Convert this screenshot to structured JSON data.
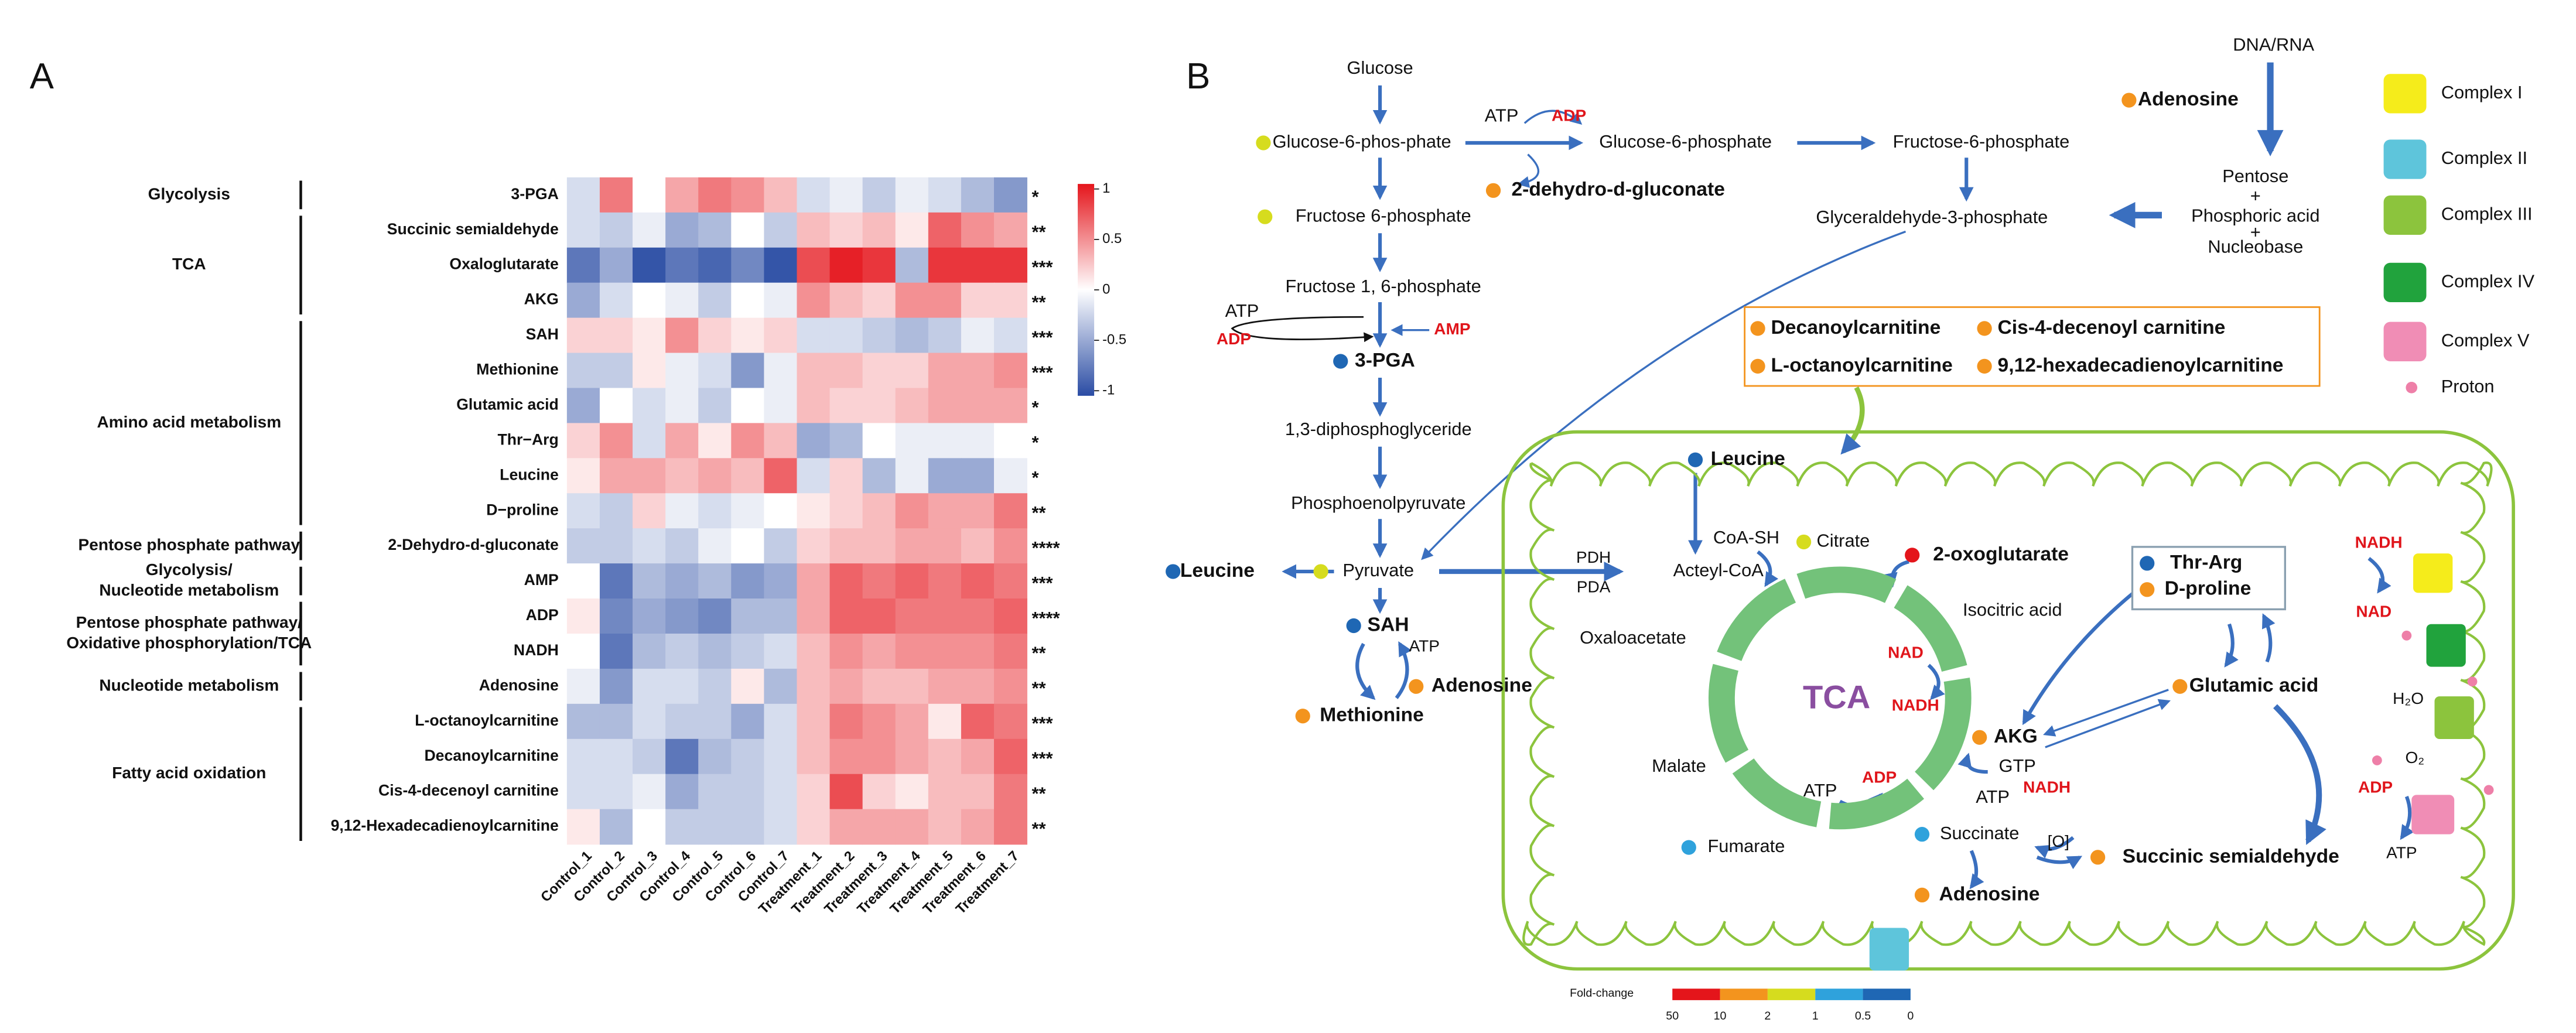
{
  "panel_labels": [
    "A",
    "B"
  ],
  "chart_data": {
    "type": "heatmap",
    "rows": [
      "3-PGA",
      "Succinic semialdehyde",
      "Oxaloglutarate",
      "AKG",
      "SAH",
      "Methionine",
      "Glutamic acid",
      "Thr−Arg",
      "Leucine",
      "D−proline",
      "2-Dehydro-d-gluconate",
      "AMP",
      "ADP",
      "NADH",
      "Adenosine",
      "L-octanoylcarnitine",
      "Decanoylcarnitine",
      "Cis-4-decenoyl carnitine",
      "9,12-Hexadecadienoylcarnitine"
    ],
    "columns": [
      "Control_1",
      "Control_2",
      "Control_3",
      "Control_4",
      "Control_5",
      "Control_6",
      "Control_7",
      "Treatment_1",
      "Treatment_2",
      "Treatment_3",
      "Treatment_4",
      "Treatment_5",
      "Treatment_6",
      "Treatment_7"
    ],
    "groups": [
      [
        "Glycolysis"
      ],
      [
        "TCA"
      ],
      [
        "Amino acid metabolism"
      ],
      [
        "Pentose phosphate pathway"
      ],
      [
        "Glycolysis/",
        "Nucleotide metabolism"
      ],
      [
        "Pentose phosphate pathway/",
        "Oxidative phosphorylation/TCA"
      ],
      [
        "Nucleotide metabolism"
      ],
      [
        "Fatty acid oxidation"
      ]
    ],
    "significance": [
      "*",
      "**",
      "***",
      "**",
      "***",
      "***",
      "*",
      "*",
      "*",
      "**",
      "****",
      "***",
      "****",
      "**",
      "**",
      "***",
      "***",
      "**",
      "**"
    ],
    "values": [
      [
        -0.2,
        0.6,
        0,
        0.4,
        0.6,
        0.5,
        0.3,
        -0.2,
        -0.1,
        -0.3,
        -0.1,
        -0.2,
        -0.4,
        -0.6
      ],
      [
        -0.2,
        -0.3,
        -0.1,
        -0.5,
        -0.4,
        0,
        -0.3,
        0.3,
        0.2,
        0.3,
        0.1,
        0.7,
        0.5,
        0.4
      ],
      [
        -0.8,
        -0.5,
        -1,
        -0.8,
        -0.9,
        -0.7,
        -1,
        0.8,
        1,
        0.9,
        -0.4,
        0.9,
        0.9,
        0.9
      ],
      [
        -0.5,
        -0.2,
        0,
        -0.1,
        -0.3,
        0,
        -0.1,
        0.5,
        0.3,
        0.2,
        0.5,
        0.5,
        0.2,
        0.2
      ],
      [
        0.2,
        0.2,
        0.1,
        0.5,
        0.2,
        0.1,
        0.2,
        -0.2,
        -0.2,
        -0.3,
        -0.4,
        -0.3,
        -0.1,
        -0.2
      ],
      [
        -0.3,
        -0.3,
        0.1,
        -0.1,
        -0.2,
        -0.6,
        -0.1,
        0.3,
        0.3,
        0.2,
        0.2,
        0.4,
        0.4,
        0.5
      ],
      [
        -0.5,
        0,
        -0.2,
        -0.1,
        -0.3,
        0,
        -0.1,
        0.3,
        0.2,
        0.2,
        0.3,
        0.4,
        0.4,
        0.4
      ],
      [
        0.2,
        0.5,
        -0.2,
        0.4,
        0.1,
        0.5,
        0.3,
        -0.5,
        -0.4,
        0,
        -0.1,
        -0.1,
        -0.1,
        0
      ],
      [
        0.1,
        0.4,
        0.4,
        0.3,
        0.4,
        0.3,
        0.7,
        -0.2,
        0.2,
        -0.4,
        -0.1,
        -0.5,
        -0.5,
        -0.1
      ],
      [
        -0.2,
        -0.3,
        0.2,
        -0.1,
        -0.2,
        -0.1,
        0,
        0.1,
        0.2,
        0.3,
        0.5,
        0.4,
        0.4,
        0.6
      ],
      [
        -0.3,
        -0.3,
        -0.2,
        -0.3,
        -0.1,
        0,
        -0.3,
        0.2,
        0.3,
        0.3,
        0.4,
        0.4,
        0.3,
        0.5
      ],
      [
        0,
        -0.8,
        -0.4,
        -0.5,
        -0.4,
        -0.6,
        -0.5,
        0.4,
        0.7,
        0.6,
        0.7,
        0.6,
        0.7,
        0.6
      ],
      [
        0.1,
        -0.7,
        -0.5,
        -0.6,
        -0.7,
        -0.4,
        -0.4,
        0.4,
        0.7,
        0.7,
        0.6,
        0.6,
        0.6,
        0.7
      ],
      [
        0,
        -0.8,
        -0.4,
        -0.3,
        -0.4,
        -0.3,
        -0.2,
        0.3,
        0.5,
        0.4,
        0.5,
        0.5,
        0.5,
        0.6
      ],
      [
        -0.1,
        -0.6,
        -0.2,
        -0.2,
        -0.3,
        0.1,
        -0.4,
        0.3,
        0.4,
        0.3,
        0.3,
        0.4,
        0.4,
        0.5
      ],
      [
        -0.4,
        -0.4,
        -0.2,
        -0.3,
        -0.3,
        -0.5,
        -0.2,
        0.3,
        0.6,
        0.5,
        0.4,
        0.1,
        0.7,
        0.6
      ],
      [
        -0.2,
        -0.2,
        -0.3,
        -0.8,
        -0.4,
        -0.3,
        -0.2,
        0.3,
        0.5,
        0.5,
        0.4,
        0.3,
        0.4,
        0.7
      ],
      [
        -0.2,
        -0.2,
        -0.1,
        -0.5,
        -0.3,
        -0.3,
        -0.2,
        0.2,
        0.8,
        0.2,
        0.1,
        0.3,
        0.3,
        0.6
      ],
      [
        0.1,
        -0.4,
        0,
        -0.3,
        -0.3,
        -0.3,
        -0.2,
        0.2,
        0.4,
        0.4,
        0.4,
        0.3,
        0.4,
        0.6
      ]
    ],
    "zlim": [
      -1.05,
      1.05
    ],
    "zticks": [
      1,
      0.5,
      0,
      -0.5,
      -1
    ],
    "colors": {
      "low": "#2a4ca4",
      "mid": "#ffffff",
      "high": "#e5151c"
    }
  },
  "diagram": {
    "nodes": [
      "Glucose",
      "Glucose-6-phos-phate",
      "ATP",
      "ADP",
      "Glucose-6-phosphate",
      "2-dehydro-d-gluconate",
      "Fructose-6-phosphate",
      "DNA/RNA",
      "Adenosine",
      "Pentose",
      "+",
      "Phosphoric acid",
      "+",
      "Nucleobase",
      "Glyceraldehyde-3-phosphate",
      "Fructose 6-phosphate",
      "Fructose 1, 6-phosphate",
      "ATP",
      "ADP",
      "AMP",
      "3-PGA",
      "1,3-diphosphoglyceride",
      "Phosphoenolpyruvate",
      "Leucine",
      "Pyruvate",
      "SAH",
      "ATP",
      "Adenosine",
      "Methionine",
      "Leucine",
      "PDH",
      "PDA",
      "Acteyl-CoA",
      "CoA-SH",
      "Citrate",
      "2-oxoglutarate",
      "Isocitric acid",
      "Oxaloacetate",
      "NAD",
      "NADH",
      "AKG",
      "Malate",
      "ATP",
      "ADP",
      "GTP",
      "ATP",
      "NADH",
      "Fumarate",
      "Succinate",
      "[O]",
      "Succinic semialdehyde",
      "Adenosine",
      "Thr-Arg",
      "D-proline",
      "Glutamic acid",
      "NADH",
      "NAD",
      "H₂O",
      "O₂",
      "ADP",
      "ATP"
    ],
    "carnitines": [
      "Decanoylcarnitine",
      "Cis-4-decenoyl carnitine",
      "L-octanoylcarnitine",
      "9,12-hexadecadienoylcarnitine"
    ],
    "cycle": "TCA",
    "legend": {
      "complexes": [
        "Complex I",
        "Complex II",
        "Complex III",
        "Complex IV",
        "Complex V"
      ],
      "colors": [
        "#f5ec1b",
        "#5ec5db",
        "#8cc43d",
        "#21a33d",
        "#f08db5"
      ],
      "proton": "Proton",
      "proton_color": "#ee7fa8"
    },
    "fold_change": {
      "title": "Fold-change",
      "ticks": [
        50,
        10,
        2,
        1,
        0.5,
        0
      ],
      "colors": [
        "#e4151b",
        "#f3941e",
        "#d6dc1e",
        "#2fa2dc",
        "#1f67b4"
      ]
    }
  }
}
